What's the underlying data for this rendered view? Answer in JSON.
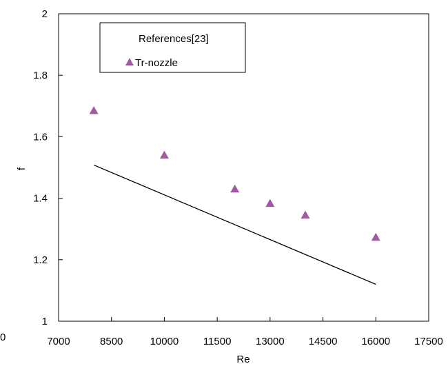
{
  "chart_data": {
    "type": "scatter",
    "xlabel": "Re",
    "ylabel": "f",
    "xlim": [
      7000,
      17500
    ],
    "ylim": [
      1,
      2
    ],
    "x_ticks": [
      7000,
      8500,
      10000,
      11500,
      13000,
      14500,
      16000,
      17500
    ],
    "y_ticks": [
      1,
      1.2,
      1.4,
      1.6,
      1.8,
      2
    ],
    "x_tick_labels": [
      "7000",
      "8500",
      "10000",
      "11500",
      "13000",
      "14500",
      "16000",
      "17500"
    ],
    "y_tick_labels": [
      "1",
      "1.2",
      "1.4",
      "1.6",
      "1.8",
      "2"
    ],
    "stray_label": "0",
    "grid": false,
    "legend": {
      "placement": "top-left",
      "header": "References[23]",
      "entries": [
        "Tr-nozzle"
      ]
    },
    "series": [
      {
        "name": "Tr-nozzle",
        "marker": "triangle",
        "color": "#a05aa0",
        "x": [
          8000,
          10000,
          12000,
          13000,
          14000,
          16000
        ],
        "y": [
          1.685,
          1.54,
          1.43,
          1.383,
          1.345,
          1.273
        ]
      },
      {
        "marker": "line",
        "color": "#000000",
        "x": [
          8000,
          16000
        ],
        "y": [
          1.508,
          1.12
        ]
      }
    ]
  }
}
